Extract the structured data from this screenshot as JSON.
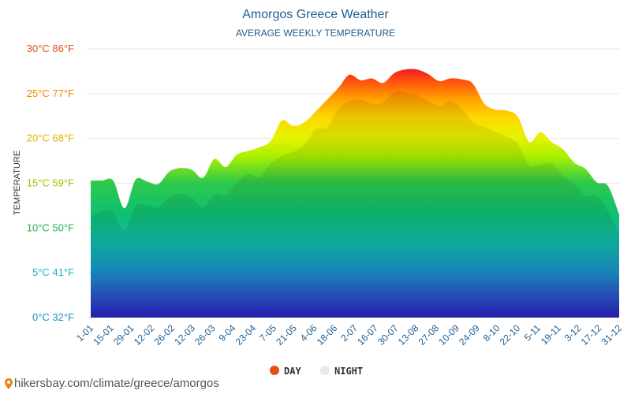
{
  "chart_data": {
    "type": "area",
    "title": "Amorgos Greece Weather",
    "subtitle": "AVERAGE WEEKLY TEMPERATURE",
    "ylabel": "TEMPERATURE",
    "ylim": [
      0,
      30
    ],
    "yticks": [
      {
        "value": 0,
        "label": "0°C 32°F",
        "color": "#1a8fc7"
      },
      {
        "value": 5,
        "label": "5°C 41°F",
        "color": "#17b8c4"
      },
      {
        "value": 10,
        "label": "10°C 50°F",
        "color": "#27b34a"
      },
      {
        "value": 15,
        "label": "15°C 59°F",
        "color": "#9bc400"
      },
      {
        "value": 20,
        "label": "20°C 68°F",
        "color": "#e0b400"
      },
      {
        "value": 25,
        "label": "25°C 77°F",
        "color": "#ee8a00"
      },
      {
        "value": 30,
        "label": "30°C 86°F",
        "color": "#e5501a"
      }
    ],
    "x_tick_labels": [
      "1-01",
      "15-01",
      "29-01",
      "12-02",
      "26-02",
      "12-03",
      "26-03",
      "9-04",
      "23-04",
      "7-05",
      "21-05",
      "4-06",
      "18-06",
      "2-07",
      "16-07",
      "30-07",
      "13-08",
      "27-08",
      "10-09",
      "24-09",
      "8-10",
      "22-10",
      "5-11",
      "19-11",
      "3-12",
      "17-12",
      "31-12"
    ],
    "series": [
      {
        "name": "DAY",
        "color": "#e8500f",
        "values": [
          15.3,
          15.3,
          15.3,
          12.2,
          15.4,
          15.2,
          14.9,
          16.3,
          16.7,
          16.5,
          15.6,
          17.7,
          16.8,
          18.2,
          18.6,
          19.0,
          19.7,
          22.0,
          21.4,
          21.8,
          23.0,
          24.3,
          25.6,
          27.1,
          26.5,
          26.7,
          26.2,
          27.3,
          27.7,
          27.7,
          27.2,
          26.4,
          26.7,
          26.6,
          26.1,
          23.9,
          23.2,
          23.1,
          22.4,
          19.6,
          20.7,
          19.6,
          18.8,
          17.3,
          16.6,
          15.1,
          14.7,
          11.5
        ]
      },
      {
        "name": "NIGHT",
        "color": "#e2ecf2",
        "values": [
          11.2,
          11.9,
          11.7,
          9.7,
          12.5,
          12.5,
          12.3,
          13.5,
          13.8,
          13.4,
          12.3,
          13.7,
          13.6,
          15.0,
          16.0,
          15.7,
          17.2,
          18.1,
          18.5,
          19.3,
          21.0,
          21.2,
          23.2,
          24.2,
          24.3,
          23.9,
          24.0,
          25.2,
          25.1,
          24.9,
          24.2,
          23.6,
          24.1,
          23.3,
          21.8,
          21.3,
          20.7,
          20.2,
          19.4,
          17.0,
          17.1,
          17.2,
          15.8,
          14.9,
          13.6,
          13.5,
          11.9,
          9.3
        ]
      }
    ],
    "legend_position": "bottom-center",
    "grid": true
  },
  "footer": {
    "source": "hikersbay.com/climate/greece/amorgos",
    "pin_icon": "map-pin-icon",
    "pin_color": "#e8851a"
  }
}
